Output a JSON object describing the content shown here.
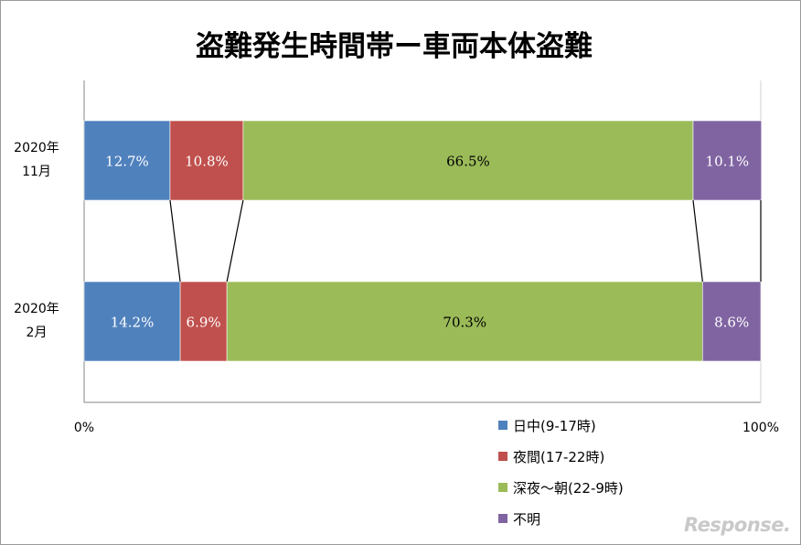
{
  "chart_data": {
    "type": "bar",
    "orientation": "horizontal",
    "stacked": "percent",
    "title": "盗難発生時間帯ー車両本体盗難",
    "categories": [
      "2020年11月",
      "2020年2月"
    ],
    "category_labels": [
      [
        "2020年",
        "11月"
      ],
      [
        "2020年",
        "2月"
      ]
    ],
    "series": [
      {
        "name": "日中(9-17時)",
        "values": [
          12.7,
          14.2
        ],
        "labels": [
          "12.7%",
          "14.2%"
        ],
        "color": "#4f81bd"
      },
      {
        "name": "夜間(17-22時)",
        "values": [
          10.8,
          6.9
        ],
        "labels": [
          "10.8%",
          "6.9%"
        ],
        "color": "#c0504d"
      },
      {
        "name": "深夜〜朝(22-9時)",
        "values": [
          66.5,
          70.3
        ],
        "labels": [
          "66.5%",
          "70.3%"
        ],
        "color": "#9bbb59"
      },
      {
        "name": "不明",
        "values": [
          10.1,
          8.6
        ],
        "labels": [
          "10.1%",
          "8.6%"
        ],
        "color": "#8064a2"
      }
    ],
    "xlim": [
      0,
      100
    ],
    "x_ticks": [
      "0%",
      "100%"
    ],
    "series_lines": true,
    "legend_position": "bottom-right",
    "label_colors": {
      "light": "#ffffff",
      "dark": "#000000"
    }
  },
  "watermark": "Response."
}
